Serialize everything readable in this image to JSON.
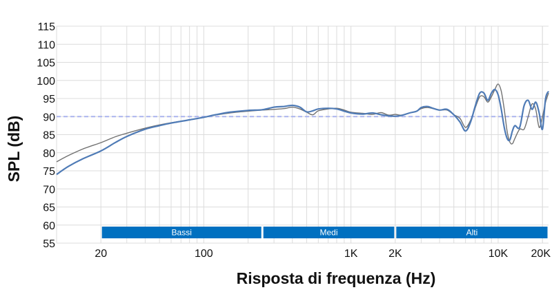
{
  "chart_data": {
    "type": "line",
    "xlabel": "Risposta di frequenza (Hz)",
    "ylabel": "SPL (dB)",
    "x_scale": "log",
    "xlim": [
      10,
      22000
    ],
    "ylim": [
      55,
      115
    ],
    "grid": true,
    "y_ticks": [
      "55",
      "60",
      "65",
      "70",
      "75",
      "80",
      "85",
      "90",
      "95",
      "100",
      "105",
      "110",
      "115"
    ],
    "x_ticks": [
      {
        "value": 20,
        "label": "20"
      },
      {
        "value": 100,
        "label": "100"
      },
      {
        "value": 1000,
        "label": "1K"
      },
      {
        "value": 2000,
        "label": "2K"
      },
      {
        "value": 10000,
        "label": "10K"
      },
      {
        "value": 20000,
        "label": "20K"
      }
    ],
    "reference_line": {
      "y": 90,
      "color": "#aab4ee"
    },
    "bands": [
      {
        "label": "Bassi",
        "from": 20,
        "to": 250,
        "color": "#0070c0"
      },
      {
        "label": "Medi",
        "from": 250,
        "to": 2000,
        "color": "#0070c0"
      },
      {
        "label": "Alti",
        "from": 2000,
        "to": 22000,
        "color": "#0070c0"
      }
    ],
    "series": [
      {
        "color": "#707070",
        "x": [
          10,
          12,
          15,
          20,
          25,
          30,
          40,
          50,
          60,
          80,
          100,
          120,
          150,
          200,
          250,
          300,
          350,
          400,
          450,
          500,
          550,
          600,
          700,
          800,
          900,
          1000,
          1200,
          1400,
          1600,
          1800,
          2000,
          2200,
          2500,
          2800,
          3000,
          3300,
          3600,
          4000,
          4500,
          5000,
          5500,
          6000,
          6500,
          7000,
          7500,
          8000,
          8500,
          9000,
          9500,
          10000,
          10500,
          11000,
          11500,
          12000,
          12500,
          13000,
          14000,
          15000,
          16000,
          17000,
          18000,
          19000,
          20000,
          21000,
          22000
        ],
        "y": [
          77.5,
          79.2,
          81,
          82.8,
          84.4,
          85.4,
          86.8,
          87.7,
          88.3,
          89.1,
          89.8,
          90.4,
          91,
          91.5,
          91.8,
          92,
          92.2,
          92.6,
          92.1,
          91.2,
          90.5,
          91.6,
          92.1,
          92.3,
          91.8,
          91.2,
          90.9,
          90.6,
          91.1,
          90.4,
          90.6,
          90.4,
          91,
          91.5,
          92.2,
          92.5,
          92.2,
          91.8,
          91.8,
          90.5,
          89.5,
          87,
          89,
          92.5,
          95.5,
          95.5,
          94,
          95.5,
          97.5,
          99,
          97,
          92,
          86,
          83,
          82.5,
          84,
          86.5,
          86.5,
          90,
          93.5,
          92,
          87,
          90,
          94,
          96.5
        ]
      },
      {
        "color": "#4f7bb6",
        "x": [
          10,
          12,
          15,
          20,
          25,
          30,
          40,
          50,
          60,
          80,
          100,
          120,
          150,
          200,
          250,
          300,
          350,
          400,
          450,
          500,
          550,
          600,
          700,
          800,
          900,
          1000,
          1200,
          1400,
          1600,
          1800,
          2000,
          2200,
          2500,
          2800,
          3000,
          3300,
          3600,
          4000,
          4500,
          5000,
          5500,
          6000,
          6500,
          7000,
          7500,
          8000,
          8500,
          9000,
          9500,
          10000,
          10500,
          11000,
          11500,
          12000,
          12500,
          13000,
          14000,
          15000,
          16000,
          17000,
          18000,
          19000,
          20000,
          21000,
          22000
        ],
        "y": [
          74,
          76.2,
          78.3,
          80.5,
          82.8,
          84.5,
          86.5,
          87.5,
          88.2,
          89.1,
          89.8,
          90.5,
          91.2,
          91.7,
          91.9,
          92.6,
          92.8,
          93.1,
          92.6,
          91.3,
          91.6,
          92.1,
          92.3,
          92.1,
          91.5,
          91,
          90.7,
          91,
          90.5,
          90.2,
          90.1,
          90.3,
          91,
          91.5,
          92.5,
          92.8,
          92.3,
          91.8,
          92,
          90.5,
          88.5,
          86,
          88.5,
          93,
          96.5,
          96.5,
          94.5,
          96.5,
          97.5,
          96,
          92,
          87,
          84,
          83.5,
          86,
          87.5,
          87,
          93,
          94.5,
          92,
          94,
          91,
          86.5,
          95,
          97
        ]
      }
    ]
  }
}
